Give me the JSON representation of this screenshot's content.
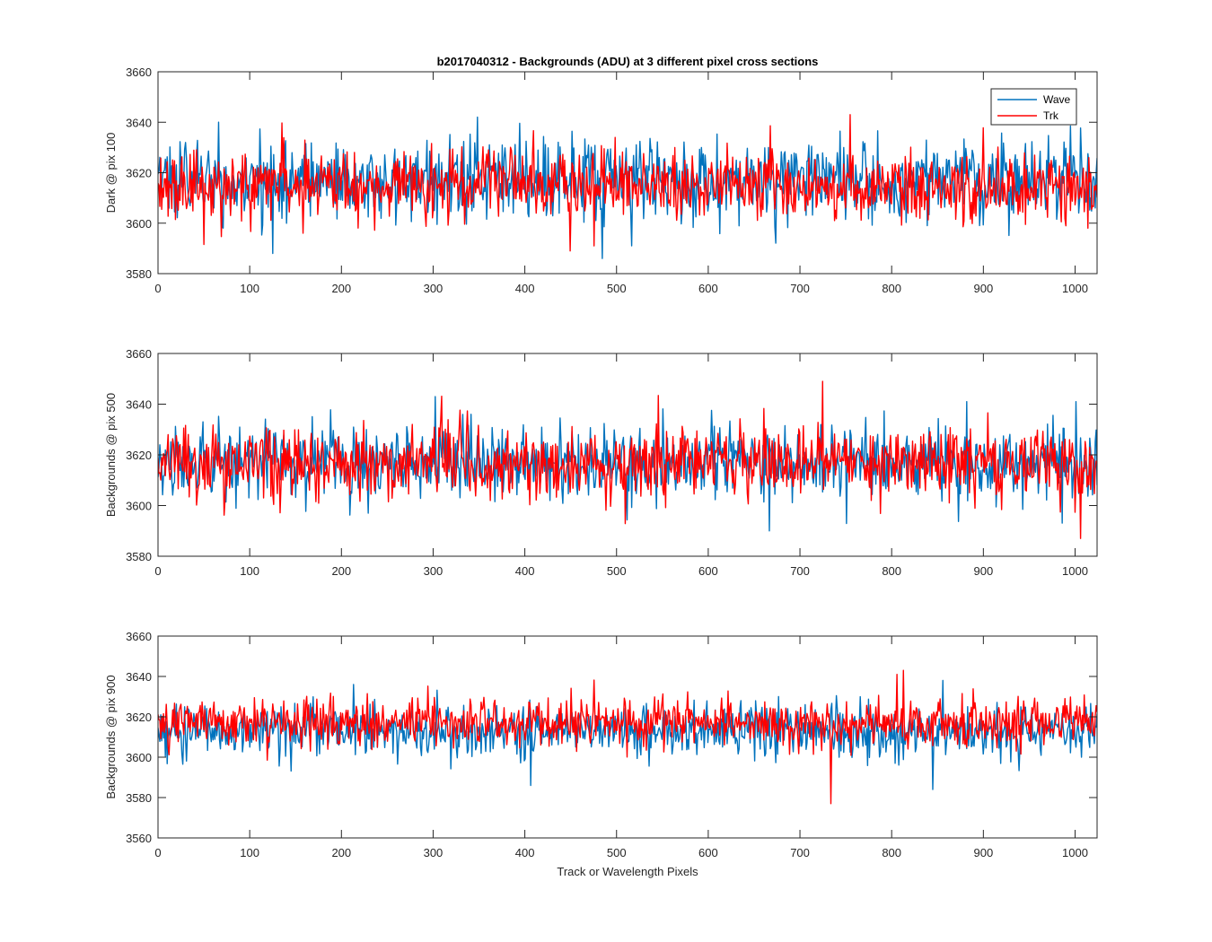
{
  "figure": {
    "title": "b2017040312 - Backgrounds (ADU) at 3 different pixel cross sections",
    "xlabel": "Track or Wavelength Pixels"
  },
  "legend": {
    "placement": "top-right",
    "entries": [
      {
        "name": "Wave",
        "color": "#0072BD"
      },
      {
        "name": "Trk",
        "color": "#FF0000"
      }
    ]
  },
  "chart_data": [
    {
      "type": "line",
      "ylabel": "Dark @ pix 100",
      "xlim": [
        0,
        1024
      ],
      "ylim": [
        3580,
        3660
      ],
      "xticks": [
        0,
        100,
        200,
        300,
        400,
        500,
        600,
        700,
        800,
        900,
        1000
      ],
      "yticks": [
        3580,
        3600,
        3620,
        3640,
        3660
      ],
      "grid": false,
      "n_points": 1024,
      "series": [
        {
          "name": "Wave",
          "color": "#0072BD",
          "mean": 3617,
          "spread": 9,
          "min": 3586,
          "max": 3642
        },
        {
          "name": "Trk",
          "color": "#FF0000",
          "mean": 3615,
          "spread": 8,
          "min": 3589,
          "max": 3643
        }
      ]
    },
    {
      "type": "line",
      "ylabel": "Backgrounds @ pix 500",
      "xlim": [
        0,
        1024
      ],
      "ylim": [
        3580,
        3660
      ],
      "xticks": [
        0,
        100,
        200,
        300,
        400,
        500,
        600,
        700,
        800,
        900,
        1000
      ],
      "yticks": [
        3580,
        3600,
        3620,
        3640,
        3660
      ],
      "grid": false,
      "n_points": 1024,
      "series": [
        {
          "name": "Wave",
          "color": "#0072BD",
          "mean": 3617,
          "spread": 8,
          "min": 3590,
          "max": 3643
        },
        {
          "name": "Trk",
          "color": "#FF0000",
          "mean": 3617,
          "spread": 8,
          "min": 3587,
          "max": 3649
        }
      ]
    },
    {
      "type": "line",
      "ylabel": "Backgrounds @ pix 900",
      "xlim": [
        0,
        1024
      ],
      "ylim": [
        3560,
        3660
      ],
      "xticks": [
        0,
        100,
        200,
        300,
        400,
        500,
        600,
        700,
        800,
        900,
        1000
      ],
      "yticks": [
        3560,
        3580,
        3600,
        3620,
        3640,
        3660
      ],
      "grid": false,
      "n_points": 1024,
      "series": [
        {
          "name": "Wave",
          "color": "#0072BD",
          "mean": 3613,
          "spread": 7,
          "min": 3584,
          "max": 3638
        },
        {
          "name": "Trk",
          "color": "#FF0000",
          "mean": 3617,
          "spread": 7,
          "min": 3577,
          "max": 3643
        }
      ]
    }
  ]
}
